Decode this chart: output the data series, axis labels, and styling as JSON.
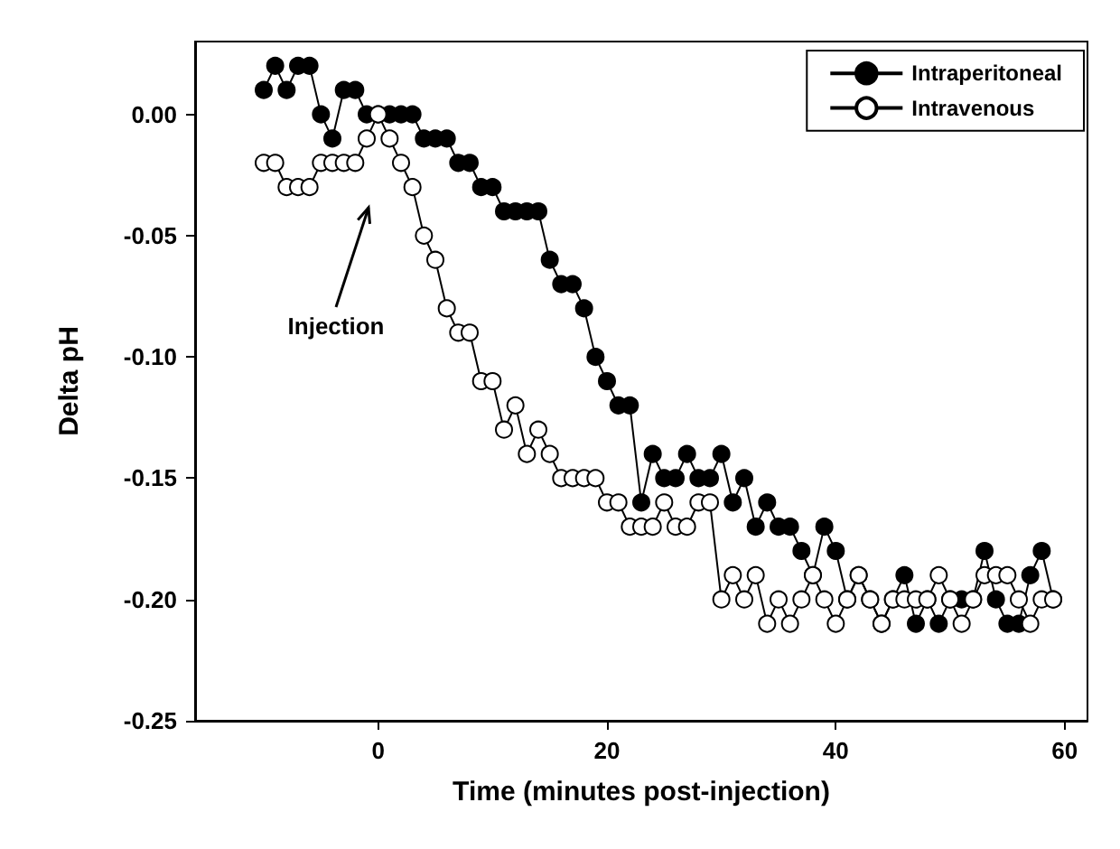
{
  "chart_data": {
    "type": "line",
    "xlabel": "Time (minutes post-injection)",
    "ylabel": "Delta pH",
    "x": [
      -10,
      -9,
      -8,
      -7,
      -6,
      -5,
      -4,
      -3,
      -2,
      -1,
      0,
      1,
      2,
      3,
      4,
      5,
      6,
      7,
      8,
      9,
      10,
      11,
      12,
      13,
      14,
      15,
      16,
      17,
      18,
      19,
      20,
      21,
      22,
      23,
      24,
      25,
      26,
      27,
      28,
      29,
      30,
      31,
      32,
      33,
      34,
      35,
      36,
      37,
      38,
      39,
      40,
      41,
      42,
      43,
      44,
      45,
      46,
      47,
      48,
      49,
      50,
      51,
      52,
      53,
      54,
      55,
      56,
      57,
      58,
      59
    ],
    "series": [
      {
        "name": "Intraperitoneal",
        "color": "#000000",
        "values": [
          0.01,
          0.02,
          0.01,
          0.02,
          0.02,
          0.0,
          -0.01,
          0.01,
          0.01,
          0.0,
          0.0,
          0.0,
          0.0,
          0.0,
          -0.01,
          -0.01,
          -0.01,
          -0.02,
          -0.02,
          -0.03,
          -0.03,
          -0.04,
          -0.04,
          -0.04,
          -0.04,
          -0.06,
          -0.07,
          -0.07,
          -0.08,
          -0.1,
          -0.11,
          -0.12,
          -0.12,
          -0.16,
          -0.14,
          -0.15,
          -0.15,
          -0.14,
          -0.15,
          -0.15,
          -0.14,
          -0.16,
          -0.15,
          -0.17,
          -0.16,
          -0.17,
          -0.17,
          -0.18,
          -0.19,
          -0.17,
          -0.18,
          -0.2,
          -0.19,
          -0.2,
          -0.21,
          -0.2,
          -0.19,
          -0.21,
          -0.2,
          -0.21,
          -0.2,
          -0.2,
          -0.2,
          -0.18,
          -0.2,
          -0.21,
          -0.21,
          -0.19,
          -0.18,
          -0.2
        ]
      },
      {
        "name": "Intravenous",
        "color": "#ffffff",
        "values": [
          -0.02,
          -0.02,
          -0.03,
          -0.03,
          -0.03,
          -0.02,
          -0.02,
          -0.02,
          -0.02,
          -0.01,
          0.0,
          -0.01,
          -0.02,
          -0.03,
          -0.05,
          -0.06,
          -0.08,
          -0.09,
          -0.09,
          -0.11,
          -0.11,
          -0.13,
          -0.12,
          -0.14,
          -0.13,
          -0.14,
          -0.15,
          -0.15,
          -0.15,
          -0.15,
          -0.16,
          -0.16,
          -0.17,
          -0.17,
          -0.17,
          -0.16,
          -0.17,
          -0.17,
          -0.16,
          -0.16,
          -0.2,
          -0.19,
          -0.2,
          -0.19,
          -0.21,
          -0.2,
          -0.21,
          -0.2,
          -0.19,
          -0.2,
          -0.21,
          -0.2,
          -0.19,
          -0.2,
          -0.21,
          -0.2,
          -0.2,
          -0.2,
          -0.2,
          -0.19,
          -0.2,
          -0.21,
          -0.2,
          -0.19,
          -0.19,
          -0.19,
          -0.2,
          -0.21,
          -0.2,
          -0.2
        ]
      }
    ],
    "xlim": [
      -16,
      62
    ],
    "xticks": [
      0,
      20,
      40,
      60
    ],
    "ylim": [
      -0.25,
      0.03
    ],
    "yticks": [
      {
        "value": -0.25,
        "label": "-0.25"
      },
      {
        "value": -0.2,
        "label": "-0.20"
      },
      {
        "value": -0.15,
        "label": "-0.15"
      },
      {
        "value": -0.1,
        "label": "-0.10"
      },
      {
        "value": -0.05,
        "label": "-0.05"
      },
      {
        "value": 0,
        "label": "0.00"
      }
    ],
    "annotations": [
      "Injection"
    ],
    "legend": "top right",
    "marker": "circle",
    "line_style": "solid",
    "grid": false
  }
}
